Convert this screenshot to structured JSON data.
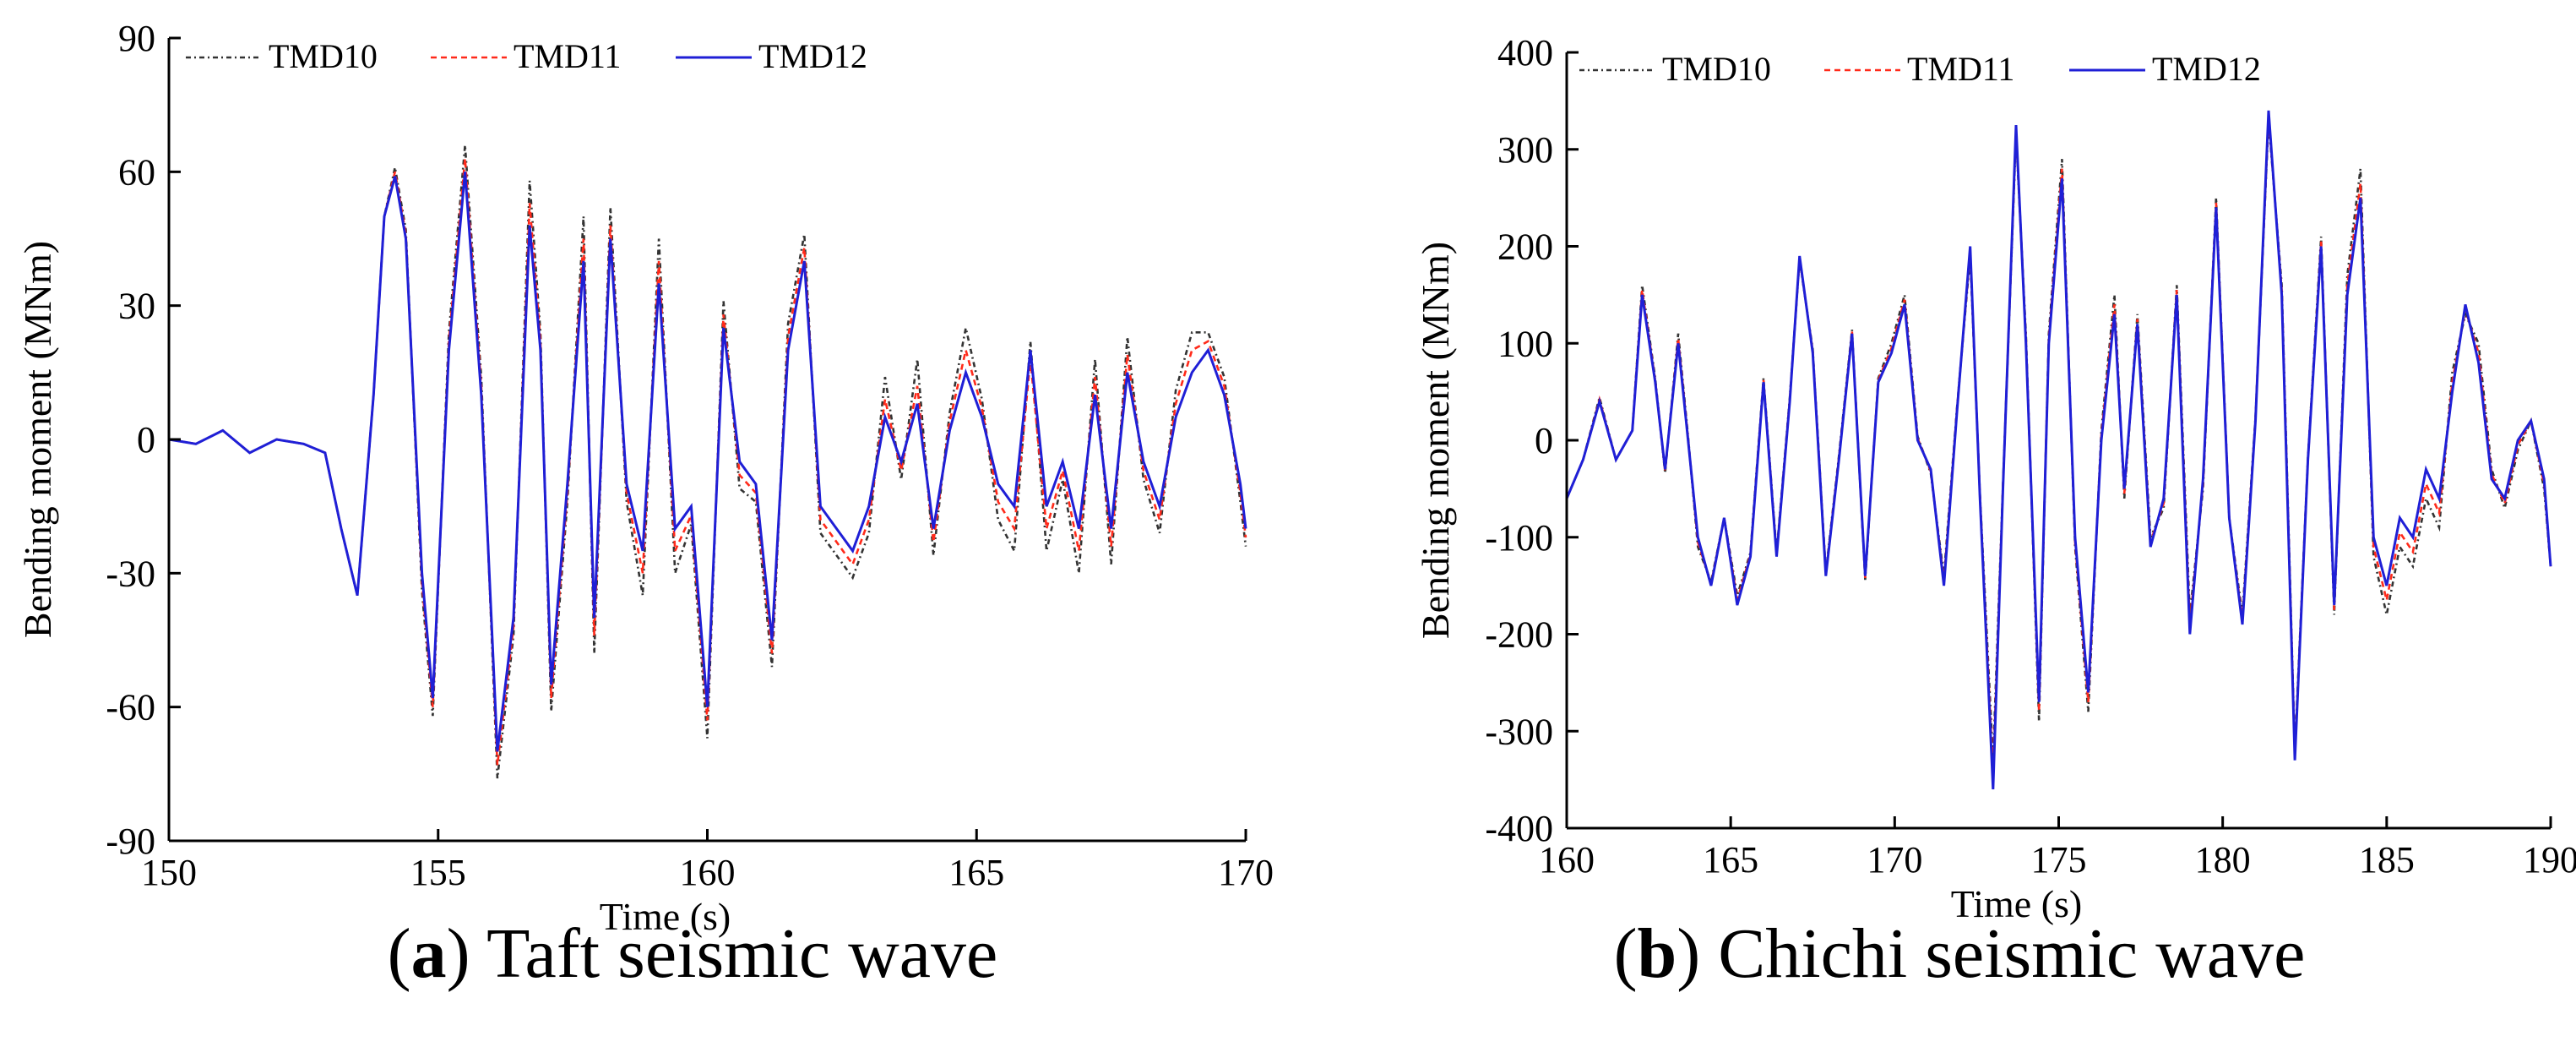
{
  "figure": {
    "captions": [
      {
        "letter": "a",
        "text": "Taft seismic wave"
      },
      {
        "letter": "b",
        "text": "Chichi seismic wave"
      }
    ]
  },
  "colors": {
    "TMD10": "#333333",
    "TMD11": "#ff2a1a",
    "TMD12": "#1f1fd6",
    "axis": "#000000"
  },
  "chart_data": [
    {
      "type": "line",
      "title": "",
      "xlabel": "Time (s)",
      "ylabel": "Bending moment (MNm)",
      "xlim": [
        150,
        170
      ],
      "ylim": [
        -90,
        90
      ],
      "xticks": [
        150,
        155,
        160,
        165,
        170
      ],
      "yticks": [
        -90,
        -60,
        -30,
        0,
        30,
        60,
        90
      ],
      "legend": [
        "TMD10",
        "TMD11",
        "TMD12"
      ],
      "legend_position": "top-left",
      "series": [
        {
          "name": "TMD12",
          "x": [
            150,
            150.5,
            151,
            151.5,
            152,
            152.5,
            152.9,
            153.2,
            153.5,
            153.8,
            154.0,
            154.2,
            154.4,
            154.7,
            154.9,
            155.2,
            155.5,
            155.8,
            156.1,
            156.4,
            156.7,
            156.9,
            157.1,
            157.4,
            157.7,
            157.9,
            158.2,
            158.5,
            158.8,
            159.1,
            159.4,
            159.7,
            160.0,
            160.3,
            160.6,
            160.9,
            161.2,
            161.5,
            161.8,
            162.1,
            162.4,
            162.7,
            163.0,
            163.3,
            163.6,
            163.9,
            164.2,
            164.5,
            164.8,
            165.1,
            165.4,
            165.7,
            166.0,
            166.3,
            166.6,
            166.9,
            167.2,
            167.5,
            167.8,
            168.1,
            168.4,
            168.7,
            169.0,
            169.3,
            169.6,
            169.9,
            170.0
          ],
          "values": [
            0,
            -1,
            2,
            -3,
            0,
            -1,
            -3,
            -20,
            -35,
            10,
            50,
            59,
            45,
            -30,
            -58,
            20,
            60,
            10,
            -70,
            -40,
            48,
            20,
            -55,
            -10,
            40,
            -40,
            45,
            -10,
            -25,
            35,
            -20,
            -15,
            -60,
            25,
            -5,
            -10,
            -45,
            20,
            40,
            -15,
            -20,
            -25,
            -15,
            5,
            -5,
            8,
            -20,
            2,
            15,
            5,
            -10,
            -15,
            20,
            -15,
            -5,
            -20,
            10,
            -20,
            15,
            -5,
            -15,
            5,
            15,
            20,
            10,
            -10,
            -20
          ]
        },
        {
          "name": "TMD11",
          "x": [
            150,
            150.5,
            151,
            151.5,
            152,
            152.5,
            152.9,
            153.2,
            153.5,
            153.8,
            154.0,
            154.2,
            154.4,
            154.7,
            154.9,
            155.2,
            155.5,
            155.8,
            156.1,
            156.4,
            156.7,
            156.9,
            157.1,
            157.4,
            157.7,
            157.9,
            158.2,
            158.5,
            158.8,
            159.1,
            159.4,
            159.7,
            160.0,
            160.3,
            160.6,
            160.9,
            161.2,
            161.5,
            161.8,
            162.1,
            162.4,
            162.7,
            163.0,
            163.3,
            163.6,
            163.9,
            164.2,
            164.5,
            164.8,
            165.1,
            165.4,
            165.7,
            166.0,
            166.3,
            166.6,
            166.9,
            167.2,
            167.5,
            167.8,
            168.1,
            168.4,
            168.7,
            169.0,
            169.3,
            169.6,
            169.9,
            170.0
          ],
          "values": [
            0,
            -1,
            2,
            -3,
            0,
            -1,
            -3,
            -20,
            -35,
            10,
            50,
            60,
            46,
            -32,
            -60,
            22,
            63,
            12,
            -73,
            -42,
            53,
            22,
            -58,
            -12,
            45,
            -44,
            48,
            -12,
            -30,
            40,
            -25,
            -17,
            -63,
            28,
            -8,
            -12,
            -48,
            23,
            43,
            -18,
            -23,
            -28,
            -18,
            9,
            -7,
            12,
            -23,
            4,
            20,
            7,
            -14,
            -20,
            18,
            -20,
            -7,
            -25,
            14,
            -24,
            19,
            -7,
            -18,
            8,
            20,
            22,
            12,
            -12,
            -22
          ]
        },
        {
          "name": "TMD10",
          "x": [
            150,
            150.5,
            151,
            151.5,
            152,
            152.5,
            152.9,
            153.2,
            153.5,
            153.8,
            154.0,
            154.2,
            154.4,
            154.7,
            154.9,
            155.2,
            155.5,
            155.8,
            156.1,
            156.4,
            156.7,
            156.9,
            157.1,
            157.4,
            157.7,
            157.9,
            158.2,
            158.5,
            158.8,
            159.1,
            159.4,
            159.7,
            160.0,
            160.3,
            160.6,
            160.9,
            161.2,
            161.5,
            161.8,
            162.1,
            162.4,
            162.7,
            163.0,
            163.3,
            163.6,
            163.9,
            164.2,
            164.5,
            164.8,
            165.1,
            165.4,
            165.7,
            166.0,
            166.3,
            166.6,
            166.9,
            167.2,
            167.5,
            167.8,
            168.1,
            168.4,
            168.7,
            169.0,
            169.3,
            169.6,
            169.9,
            170.0
          ],
          "values": [
            0,
            -1,
            2,
            -3,
            0,
            -1,
            -3,
            -20,
            -35,
            10,
            50,
            61,
            47,
            -34,
            -62,
            24,
            66,
            14,
            -76,
            -44,
            58,
            24,
            -61,
            -14,
            50,
            -48,
            52,
            -14,
            -35,
            45,
            -30,
            -19,
            -67,
            31,
            -11,
            -14,
            -51,
            26,
            46,
            -21,
            -26,
            -31,
            -21,
            14,
            -9,
            18,
            -26,
            6,
            25,
            9,
            -18,
            -25,
            22,
            -25,
            -9,
            -30,
            18,
            -28,
            23,
            -9,
            -21,
            11,
            24,
            24,
            14,
            -14,
            -24
          ]
        }
      ]
    },
    {
      "type": "line",
      "title": "",
      "xlabel": "Time (s)",
      "ylabel": "Bending moment (MNm)",
      "xlim": [
        160,
        190
      ],
      "ylim": [
        -400,
        400
      ],
      "xticks": [
        160,
        165,
        170,
        175,
        180,
        185,
        190
      ],
      "yticks": [
        -400,
        -300,
        -200,
        -100,
        0,
        100,
        200,
        300,
        400
      ],
      "legend": [
        "TMD10",
        "TMD11",
        "TMD12"
      ],
      "legend_position": "top-left",
      "series": [
        {
          "name": "TMD12",
          "x": [
            160,
            160.5,
            161,
            161.5,
            162,
            162.3,
            162.7,
            163,
            163.4,
            163.7,
            164,
            164.4,
            164.8,
            165.2,
            165.6,
            166,
            166.4,
            166.8,
            167.1,
            167.5,
            167.9,
            168.3,
            168.7,
            169.1,
            169.5,
            169.9,
            170.3,
            170.7,
            171.1,
            171.5,
            171.9,
            172.3,
            172.6,
            173.0,
            173.3,
            173.7,
            174.0,
            174.4,
            174.7,
            175.1,
            175.5,
            175.9,
            176.3,
            176.7,
            177.0,
            177.4,
            177.8,
            178.2,
            178.6,
            179.0,
            179.4,
            179.8,
            180.2,
            180.6,
            181.0,
            181.4,
            181.8,
            182.2,
            182.6,
            183.0,
            183.4,
            183.8,
            184.2,
            184.6,
            185.0,
            185.4,
            185.8,
            186.2,
            186.6,
            187.0,
            187.4,
            187.8,
            188.2,
            188.6,
            189.0,
            189.4,
            189.8,
            190.0
          ],
          "values": [
            -60,
            -20,
            40,
            -20,
            10,
            150,
            60,
            -30,
            100,
            0,
            -100,
            -150,
            -80,
            -170,
            -120,
            60,
            -120,
            40,
            190,
            90,
            -140,
            -20,
            110,
            -140,
            60,
            90,
            140,
            0,
            -30,
            -150,
            30,
            200,
            -60,
            -360,
            -50,
            325,
            100,
            -270,
            100,
            270,
            -100,
            -260,
            0,
            130,
            -50,
            120,
            -110,
            -60,
            150,
            -200,
            -40,
            240,
            -80,
            -190,
            20,
            340,
            150,
            -330,
            -20,
            200,
            -170,
            150,
            250,
            -100,
            -150,
            -80,
            -100,
            -30,
            -60,
            50,
            140,
            80,
            -40,
            -60,
            0,
            20,
            -40,
            -130
          ]
        },
        {
          "name": "TMD11",
          "x": [
            160,
            160.5,
            161,
            161.5,
            162,
            162.3,
            162.7,
            163,
            163.4,
            163.7,
            164,
            164.4,
            164.8,
            165.2,
            165.6,
            166,
            166.4,
            166.8,
            167.1,
            167.5,
            167.9,
            168.3,
            168.7,
            169.1,
            169.5,
            169.9,
            170.3,
            170.7,
            171.1,
            171.5,
            171.9,
            172.3,
            172.6,
            173.0,
            173.3,
            173.7,
            174.0,
            174.4,
            174.7,
            175.1,
            175.5,
            175.9,
            176.3,
            176.7,
            177.0,
            177.4,
            177.8,
            178.2,
            178.6,
            179.0,
            179.4,
            179.8,
            180.2,
            180.6,
            181.0,
            181.4,
            181.8,
            182.2,
            182.6,
            183.0,
            183.4,
            183.8,
            184.2,
            184.6,
            185.0,
            185.4,
            185.8,
            186.2,
            186.6,
            187.0,
            187.4,
            187.8,
            188.2,
            188.6,
            189.0,
            189.4,
            189.8,
            190.0
          ],
          "values": [
            -60,
            -20,
            42,
            -20,
            10,
            155,
            62,
            -32,
            105,
            2,
            -105,
            -148,
            -80,
            -165,
            -118,
            62,
            -118,
            42,
            188,
            92,
            -138,
            -18,
            112,
            -142,
            62,
            95,
            145,
            2,
            -32,
            -145,
            32,
            195,
            -58,
            -345,
            -48,
            320,
            105,
            -280,
            105,
            280,
            -105,
            -270,
            5,
            140,
            -55,
            125,
            -105,
            -65,
            155,
            -190,
            -45,
            245,
            -80,
            -185,
            22,
            335,
            155,
            -325,
            -20,
            205,
            -175,
            160,
            265,
            -110,
            -165,
            -95,
            -115,
            -45,
            -75,
            60,
            135,
            90,
            -35,
            -65,
            -5,
            20,
            -45,
            -130
          ]
        },
        {
          "name": "TMD10",
          "x": [
            160,
            160.5,
            161,
            161.5,
            162,
            162.3,
            162.7,
            163,
            163.4,
            163.7,
            164,
            164.4,
            164.8,
            165.2,
            165.6,
            166,
            166.4,
            166.8,
            167.1,
            167.5,
            167.9,
            168.3,
            168.7,
            169.1,
            169.5,
            169.9,
            170.3,
            170.7,
            171.1,
            171.5,
            171.9,
            172.3,
            172.6,
            173.0,
            173.3,
            173.7,
            174.0,
            174.4,
            174.7,
            175.1,
            175.5,
            175.9,
            176.3,
            176.7,
            177.0,
            177.4,
            177.8,
            178.2,
            178.6,
            179.0,
            179.4,
            179.8,
            180.2,
            180.6,
            181.0,
            181.4,
            181.8,
            182.2,
            182.6,
            183.0,
            183.4,
            183.8,
            184.2,
            184.6,
            185.0,
            185.4,
            185.8,
            186.2,
            186.6,
            187.0,
            187.4,
            187.8,
            188.2,
            188.6,
            189.0,
            189.4,
            189.8,
            190.0
          ],
          "values": [
            -60,
            -20,
            44,
            -20,
            10,
            160,
            64,
            -34,
            110,
            4,
            -110,
            -146,
            -80,
            -160,
            -116,
            64,
            -116,
            44,
            186,
            94,
            -136,
            -16,
            114,
            -144,
            64,
            100,
            150,
            4,
            -34,
            -140,
            34,
            190,
            -56,
            -330,
            -46,
            315,
            110,
            -290,
            110,
            290,
            -110,
            -280,
            10,
            150,
            -60,
            130,
            -100,
            -70,
            160,
            -180,
            -50,
            250,
            -80,
            -180,
            24,
            330,
            160,
            -320,
            -18,
            210,
            -180,
            170,
            280,
            -120,
            -180,
            -110,
            -130,
            -60,
            -90,
            70,
            130,
            100,
            -30,
            -70,
            -10,
            20,
            -50,
            -130
          ]
        }
      ]
    }
  ]
}
